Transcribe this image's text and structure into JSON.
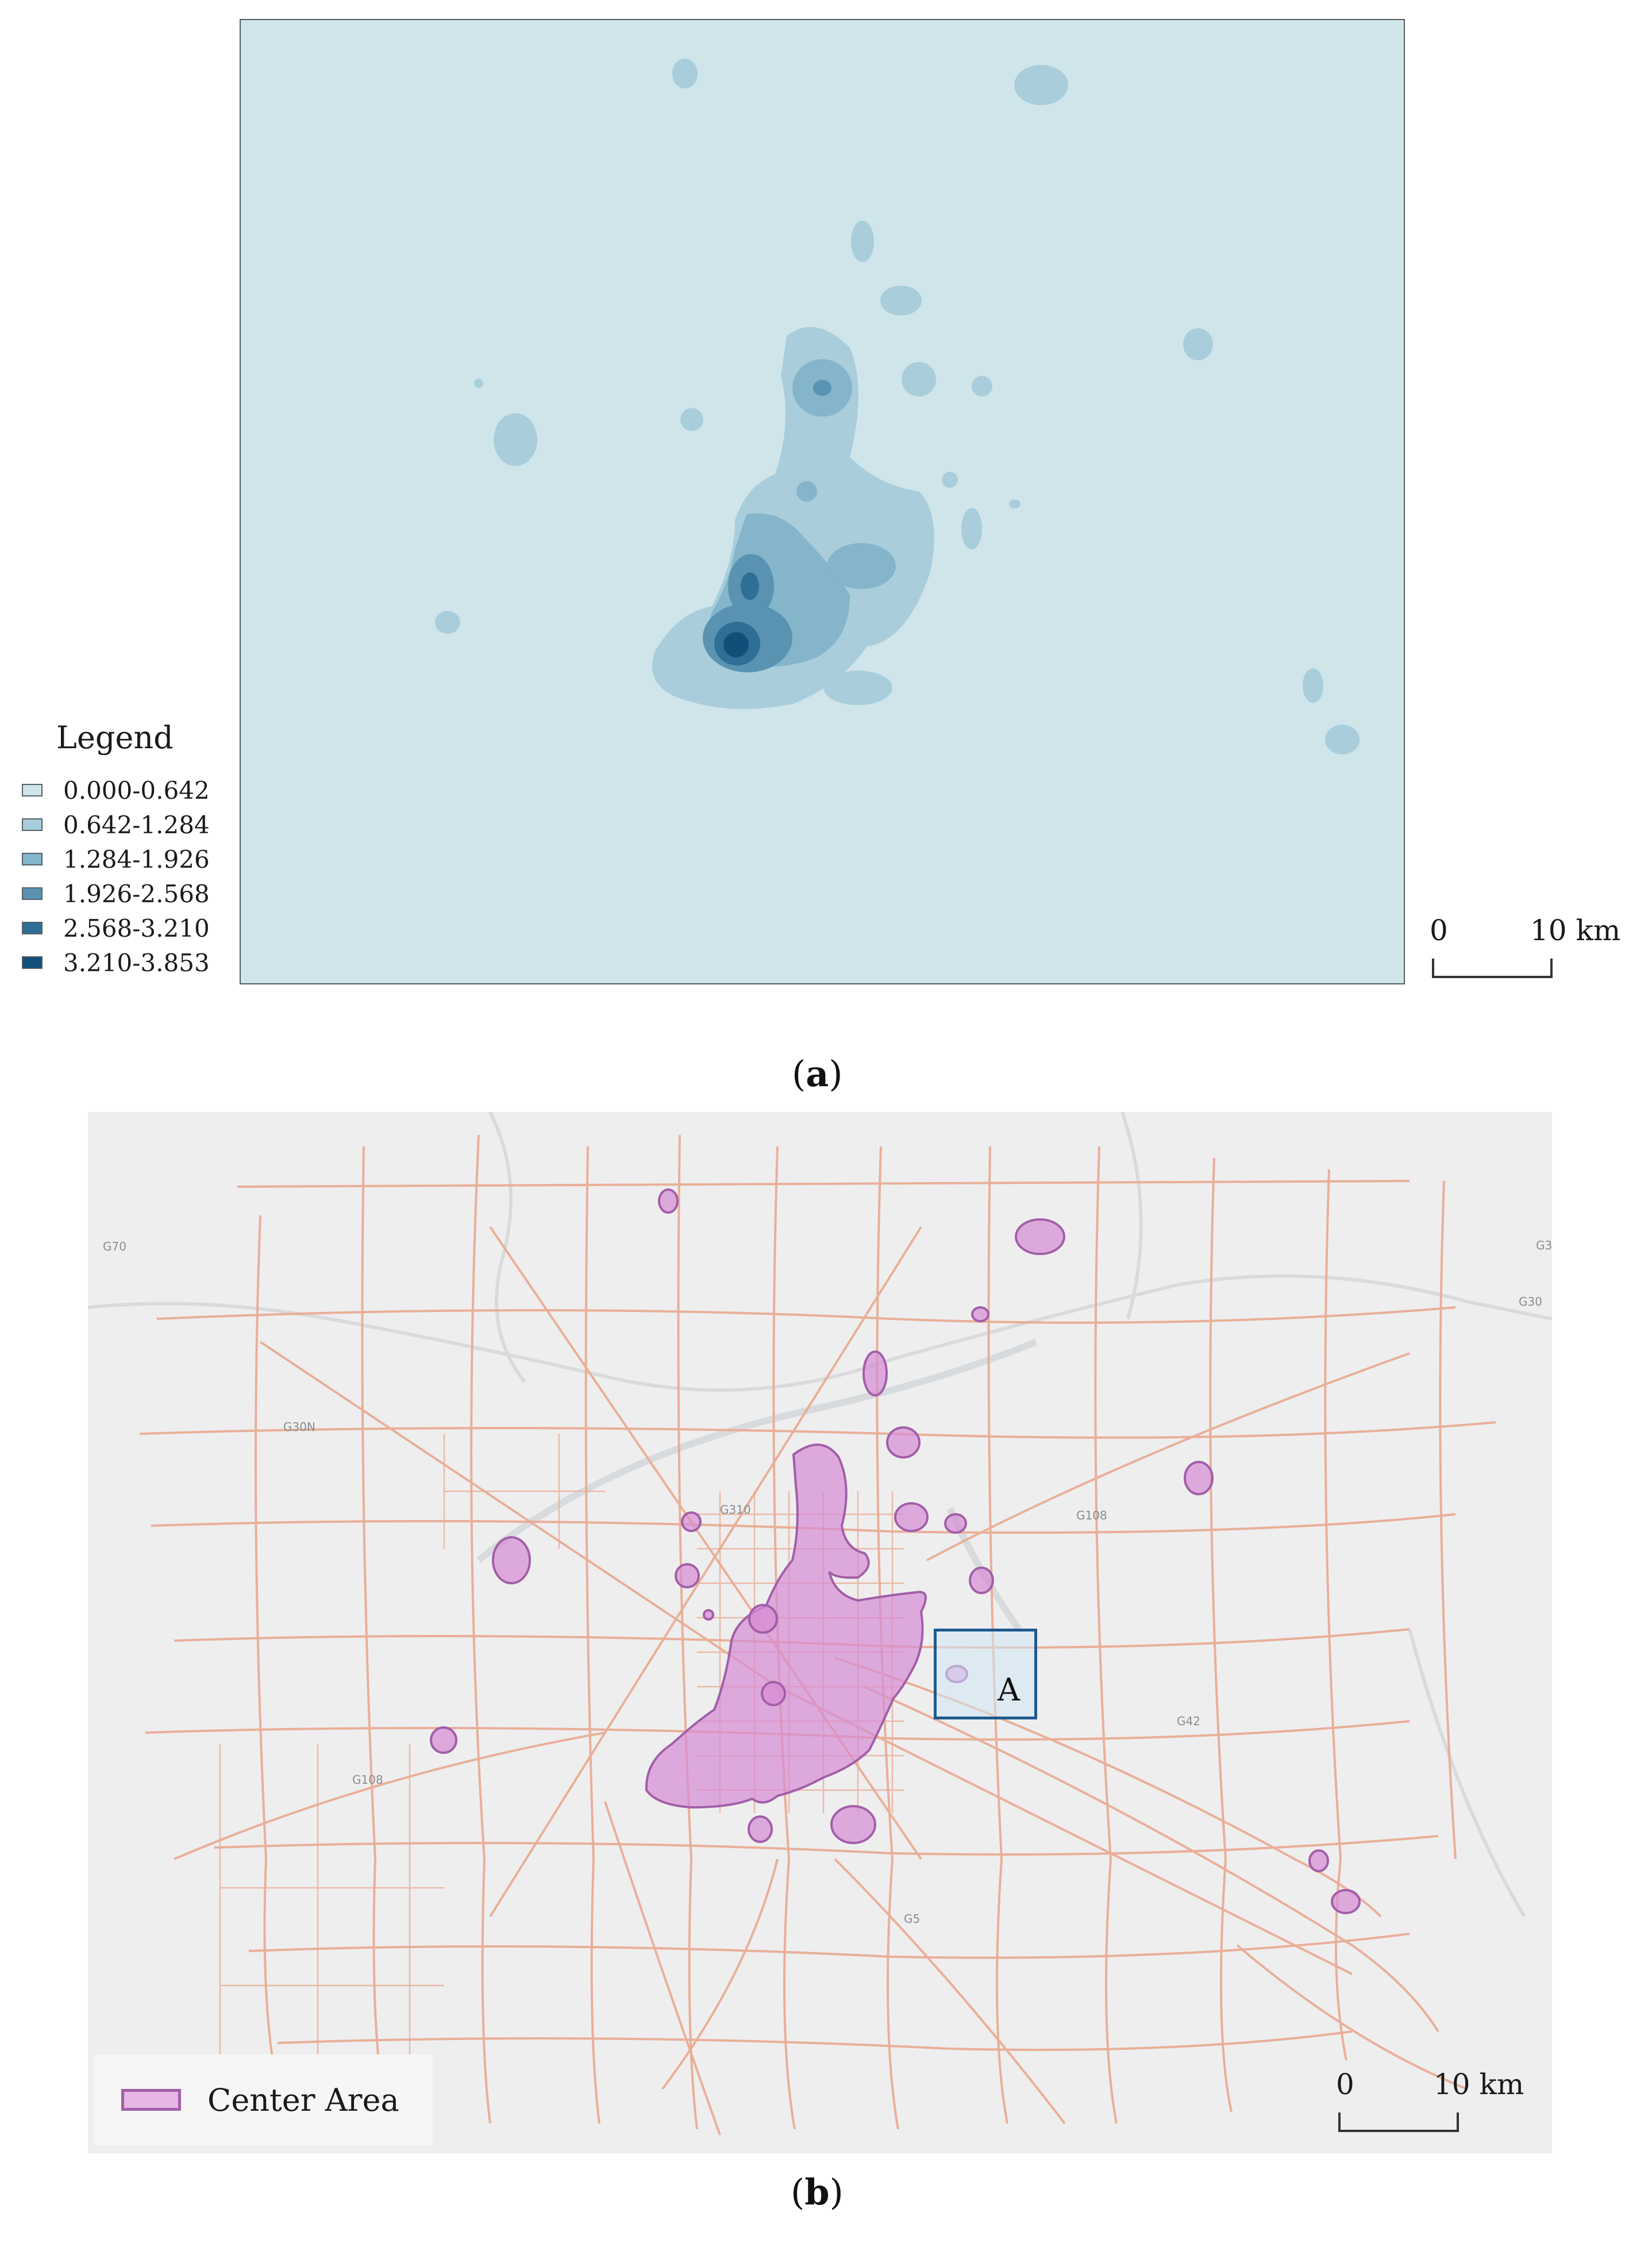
{
  "panel_a": {
    "legend": {
      "title": "Legend",
      "classes": [
        {
          "range": "0.000-0.642",
          "color": "#cfe5ea"
        },
        {
          "range": "0.642-1.284",
          "color": "#a9cddb"
        },
        {
          "range": "1.284-1.926",
          "color": "#84b5cb"
        },
        {
          "range": "1.926-2.568",
          "color": "#5a93b1"
        },
        {
          "range": "2.568-3.210",
          "color": "#2f6f96"
        },
        {
          "range": "3.210-3.853",
          "color": "#0f4f78"
        }
      ]
    },
    "scale_bar": {
      "start_label": "0",
      "end_label": "10 km"
    },
    "caption": {
      "open": "(",
      "letter": "a",
      "close": ")"
    }
  },
  "panel_b": {
    "legend": {
      "label": "Center Area",
      "fill_color": "#e7b6e4",
      "border_color": "#a25ea8"
    },
    "inset_box": {
      "label": "A",
      "color": "#1f5a8f"
    },
    "road_labels": [
      "G70",
      "G30N",
      "G310",
      "G30",
      "G108",
      "G42",
      "G108",
      "G3",
      "G5"
    ],
    "scale_bar": {
      "start_label": "0",
      "end_label": "10 km"
    },
    "caption": {
      "open": "(",
      "letter": "b",
      "close": ")"
    },
    "colors": {
      "road": "#e9a98f",
      "center_area": "#d68cd4",
      "background": "#eeeeef"
    }
  }
}
